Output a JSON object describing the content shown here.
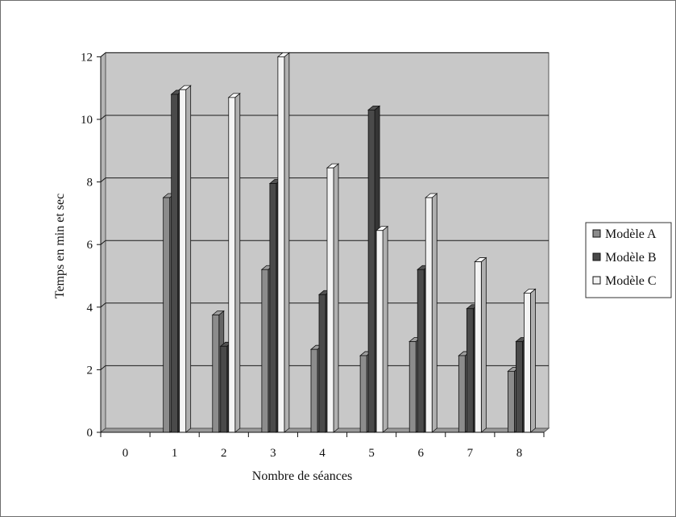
{
  "chart_data": {
    "type": "bar",
    "title": "",
    "xlabel": "Nombre de séances",
    "ylabel": "Temps en min et sec",
    "categories": [
      "0",
      "1",
      "2",
      "3",
      "4",
      "5",
      "6",
      "7",
      "8"
    ],
    "ylim": [
      0,
      12
    ],
    "yticks": [
      "0",
      "2",
      "4",
      "6",
      "8",
      "10",
      "12"
    ],
    "grid": true,
    "legend_position": "right",
    "series": [
      {
        "name": "Modèle A",
        "color": "#8c8c8c",
        "values": [
          0,
          7.5,
          3.75,
          5.2,
          2.65,
          2.45,
          2.9,
          2.45,
          1.95
        ]
      },
      {
        "name": "Modèle B",
        "color": "#4a4a4a",
        "values": [
          0,
          10.8,
          2.75,
          7.95,
          4.4,
          10.3,
          5.2,
          3.95,
          2.9
        ]
      },
      {
        "name": "Modèle C",
        "color": "#f4f4f4",
        "values": [
          0,
          10.95,
          10.7,
          12,
          8.45,
          6.45,
          7.5,
          5.45,
          4.45
        ]
      }
    ],
    "plot_background": "#c8c8c8"
  }
}
